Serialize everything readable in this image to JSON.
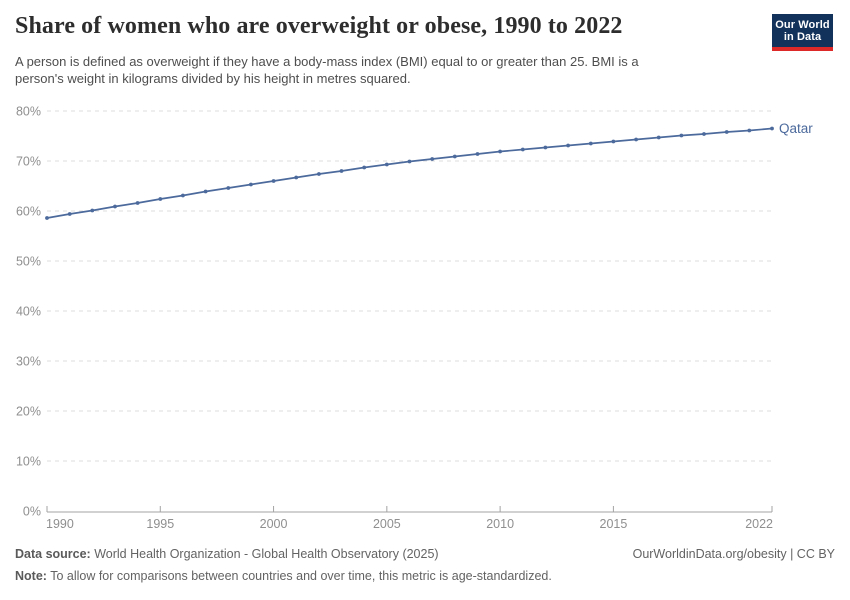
{
  "header": {
    "title": "Share of women who are overweight or obese, 1990 to 2022",
    "subtitle_lines": [
      "A person is defined as overweight if they have a body-mass index (BMI) equal to or greater than 25. BMI is a",
      "person's weight in kilograms divided by his height in metres squared."
    ],
    "logo": {
      "line1": "Our World",
      "line2": "in Data"
    }
  },
  "chart_data": {
    "type": "line",
    "title": "Share of women who are overweight or obese, 1990 to 2022",
    "xlabel": "",
    "ylabel": "",
    "ylim": [
      0,
      80
    ],
    "y_ticks": [
      0,
      10,
      20,
      30,
      40,
      50,
      60,
      70,
      80
    ],
    "y_tick_suffix": "%",
    "x_ticks": [
      1990,
      1995,
      2000,
      2005,
      2010,
      2015,
      2022
    ],
    "xlim": [
      1990,
      2022
    ],
    "grid": "horizontal-dashed",
    "legend": "end-of-line-label",
    "series": [
      {
        "name": "Qatar",
        "x": [
          1990,
          1991,
          1992,
          1993,
          1994,
          1995,
          1996,
          1997,
          1998,
          1999,
          2000,
          2001,
          2002,
          2003,
          2004,
          2005,
          2006,
          2007,
          2008,
          2009,
          2010,
          2011,
          2012,
          2013,
          2014,
          2015,
          2016,
          2017,
          2018,
          2019,
          2020,
          2021,
          2022
        ],
        "values": [
          58.6,
          59.4,
          60.1,
          60.9,
          61.6,
          62.4,
          63.1,
          63.9,
          64.6,
          65.3,
          66.0,
          66.7,
          67.4,
          68.0,
          68.7,
          69.3,
          69.9,
          70.4,
          70.9,
          71.4,
          71.9,
          72.3,
          72.7,
          73.1,
          73.5,
          73.9,
          74.3,
          74.7,
          75.1,
          75.4,
          75.8,
          76.1,
          76.5
        ]
      }
    ],
    "colors": {
      "line": "#4C6A9C",
      "series_label": "#4C6A9C",
      "grid": "#dedede",
      "axis": "#a3a3a3",
      "tick_label": "#8f8f8f"
    }
  },
  "footer": {
    "data_source_label": "Data source:",
    "data_source_text": " World Health Organization - Global Health Observatory (2025)",
    "link_text": "OurWorldinData.org/obesity | CC BY",
    "note_label": "Note:",
    "note_text": " To allow for comparisons between countries and over time, this metric is age-standardized."
  }
}
